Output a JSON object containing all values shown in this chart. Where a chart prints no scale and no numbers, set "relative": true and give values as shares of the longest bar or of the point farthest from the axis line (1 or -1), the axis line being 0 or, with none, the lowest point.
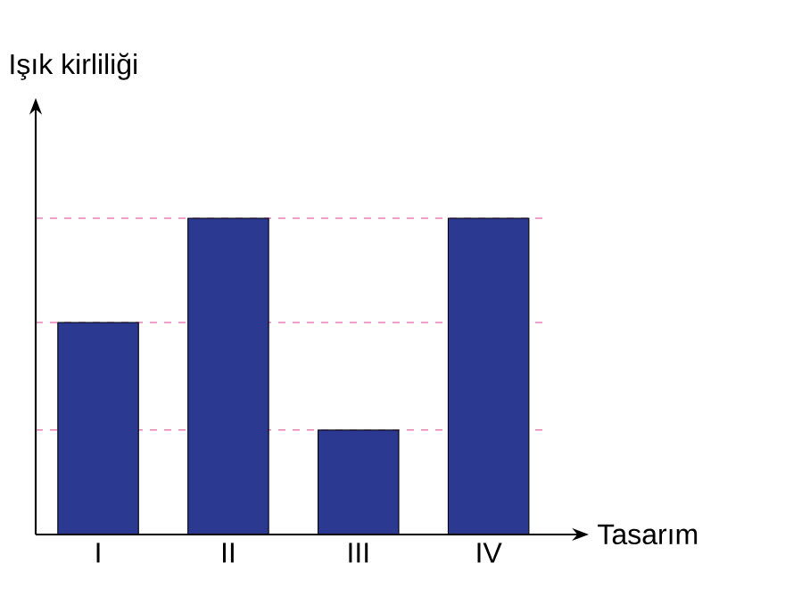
{
  "chart_data": {
    "type": "bar",
    "relative": true,
    "xlabel": "Tasarım",
    "ylabel": "Işık kirliliği",
    "categories": [
      "I",
      "II",
      "III",
      "IV"
    ],
    "values": [
      0.67,
      1,
      0.33,
      1
    ],
    "color": "#2b3990",
    "ref_lines": [
      {
        "axis": "y",
        "value": 0.33,
        "color": "#e0409a",
        "line_style": "dashed"
      },
      {
        "axis": "y",
        "value": 0.67,
        "color": "#e0409a",
        "line_style": "dashed"
      },
      {
        "axis": "y",
        "value": 1,
        "color": "#e0409a",
        "line_style": "dashed"
      }
    ]
  }
}
